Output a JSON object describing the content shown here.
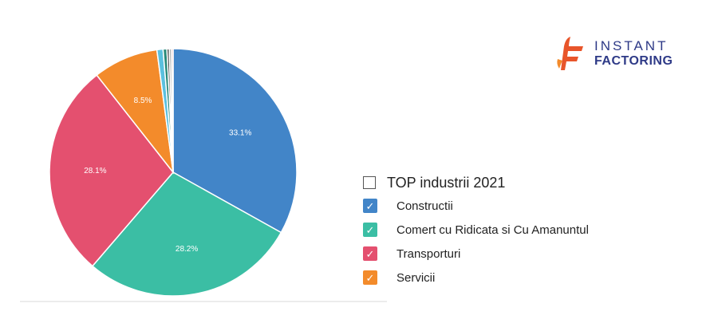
{
  "chart_data": {
    "type": "pie",
    "title": "TOP industrii 2021",
    "slices": [
      {
        "label": "Constructii",
        "value": 33.1,
        "color": "#4285c8",
        "value_label": "33.1%"
      },
      {
        "label": "Comert cu Ridicata si Cu Amanuntul",
        "value": 28.2,
        "color": "#3bbea4",
        "value_label": "28.2%"
      },
      {
        "label": "Transporturi",
        "value": 28.1,
        "color": "#e4506f",
        "value_label": "28.1%"
      },
      {
        "label": "Servicii",
        "value": 8.5,
        "color": "#f38b2b",
        "value_label": "8.5%"
      },
      {
        "label": "",
        "value": 0.8,
        "color": "#5bc0de",
        "value_label": ""
      },
      {
        "label": "",
        "value": 0.5,
        "color": "#2a8a7a",
        "value_label": ""
      },
      {
        "label": "",
        "value": 0.3,
        "color": "#444444",
        "value_label": ""
      },
      {
        "label": "",
        "value": 0.3,
        "color": "#b0b0b0",
        "value_label": ""
      },
      {
        "label": "",
        "value": 0.2,
        "color": "#e8a0a0",
        "value_label": ""
      }
    ]
  },
  "legend": {
    "title": "TOP industrii 2021",
    "items": [
      {
        "label": "Constructii",
        "color": "#4285c8",
        "check": "✓"
      },
      {
        "label": "Comert cu Ridicata si Cu Amanuntul",
        "color": "#3bbea4",
        "check": "✓"
      },
      {
        "label": "Transporturi",
        "color": "#e4506f",
        "check": "✓"
      },
      {
        "label": "Servicii",
        "color": "#f38b2b",
        "check": "✓"
      }
    ]
  },
  "logo": {
    "line1": "INSTANT",
    "line2": "FACTORING",
    "colors": {
      "mark": "#e8552a",
      "text": "#2e3a87"
    }
  }
}
